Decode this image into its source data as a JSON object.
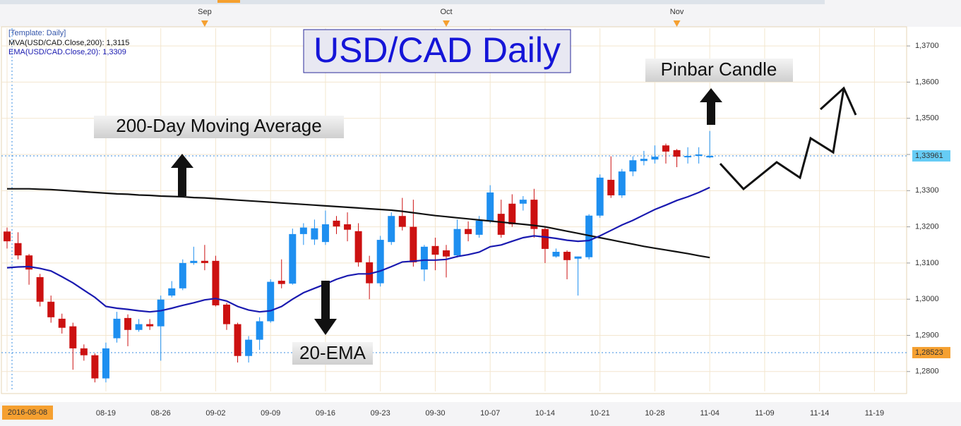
{
  "chart_data": {
    "type": "candlestick",
    "title": "USD/CAD Daily",
    "legend_header": "[Template: Daily]",
    "annotations": [
      "Pinbar Candle",
      "200-Day Moving Average",
      "20-EMA"
    ],
    "categories": [
      "2016-08-08",
      null,
      null,
      null,
      null,
      null,
      null,
      null,
      null,
      "08-19",
      null,
      null,
      null,
      null,
      "08-26",
      null,
      null,
      null,
      null,
      "09-02",
      null,
      null,
      null,
      null,
      "09-09",
      null,
      null,
      null,
      null,
      "09-16",
      null,
      null,
      null,
      null,
      "09-23",
      null,
      null,
      null,
      null,
      "09-30",
      null,
      null,
      null,
      null,
      "10-07",
      null,
      null,
      null,
      null,
      "10-14",
      null,
      null,
      null,
      null,
      "10-21",
      null,
      null,
      null,
      null,
      "10-28",
      null,
      null,
      null,
      null,
      "11-04",
      null,
      null,
      null,
      null,
      "11-09",
      null,
      null,
      null,
      null,
      "11-14",
      null,
      null,
      null,
      null,
      "11-19",
      null,
      null,
      null
    ],
    "top_labels": [
      {
        "label": "Sep",
        "at": 18
      },
      {
        "label": "Oct",
        "at": 40
      },
      {
        "label": "Nov",
        "at": 61
      }
    ],
    "open": [
      1.3187,
      1.3155,
      1.3121,
      1.3061,
      1.2993,
      1.2946,
      1.2925,
      1.2864,
      1.2845,
      1.2781,
      1.2892,
      1.2948,
      1.2915,
      1.2931,
      1.2925,
      1.301,
      1.303,
      1.31,
      1.3106,
      1.3106,
      1.2985,
      1.2931,
      1.2843,
      1.2888,
      1.2939,
      1.3051,
      1.3043,
      1.318,
      1.3165,
      1.3158,
      1.3217,
      1.3207,
      1.3188,
      1.3102,
      1.3044,
      1.3158,
      1.323,
      1.32,
      1.3082,
      1.3147,
      1.3135,
      1.3121,
      1.3194,
      1.3178,
      1.3217,
      1.3236,
      1.3264,
      1.3264,
      1.3275,
      1.3194,
      1.3118,
      1.3131,
      1.3112,
      1.3116,
      1.3231,
      1.333,
      1.3287,
      1.3353,
      1.3382,
      1.3386,
      1.3425,
      1.3412,
      1.3394,
      1.3398,
      1.3392,
      null,
      null,
      null,
      null,
      null,
      null,
      null,
      null,
      null,
      null,
      null,
      null,
      null,
      null,
      null,
      null,
      null,
      null
    ],
    "high": [
      1.3198,
      1.3185,
      1.3125,
      1.307,
      1.301,
      1.296,
      1.2935,
      1.2875,
      1.285,
      1.288,
      1.2965,
      1.2958,
      1.2945,
      1.2945,
      1.301,
      1.305,
      1.311,
      1.3145,
      1.315,
      1.312,
      1.299,
      1.2935,
      1.2898,
      1.295,
      1.3055,
      1.311,
      1.3195,
      1.321,
      1.322,
      1.3245,
      1.323,
      1.324,
      1.321,
      1.312,
      1.3175,
      1.324,
      1.328,
      1.3275,
      1.315,
      1.317,
      1.315,
      1.322,
      1.3215,
      1.323,
      1.3315,
      1.3275,
      1.329,
      1.3285,
      1.3305,
      1.32,
      1.314,
      1.3135,
      1.3118,
      1.3235,
      1.3345,
      1.3395,
      1.336,
      1.3395,
      1.341,
      1.3425,
      1.343,
      1.3415,
      1.342,
      1.342,
      1.3465,
      null,
      null,
      null,
      null,
      null,
      null,
      null,
      null,
      null,
      null,
      null,
      null,
      null,
      null,
      null,
      null,
      null,
      null
    ],
    "low": [
      1.314,
      1.311,
      1.304,
      1.298,
      1.2935,
      1.2905,
      1.2805,
      1.283,
      1.277,
      1.277,
      1.288,
      1.287,
      1.291,
      1.2915,
      1.283,
      1.3005,
      1.3025,
      1.3095,
      1.308,
      1.298,
      1.2915,
      1.2825,
      1.2825,
      1.286,
      1.2935,
      1.303,
      1.304,
      1.315,
      1.315,
      1.315,
      1.318,
      1.316,
      1.309,
      1.3,
      1.3035,
      1.315,
      1.319,
      1.309,
      1.305,
      1.308,
      1.306,
      1.3115,
      1.316,
      1.317,
      1.321,
      1.317,
      1.32,
      1.3245,
      1.317,
      1.31,
      1.3115,
      1.3055,
      1.301,
      1.311,
      1.3225,
      1.328,
      1.328,
      1.334,
      1.337,
      1.3375,
      1.3375,
      1.3365,
      1.3375,
      1.3375,
      1.339,
      null,
      null,
      null,
      null,
      null,
      null,
      null,
      null,
      null,
      null,
      null,
      null,
      null,
      null,
      null,
      null,
      null,
      null
    ],
    "close": [
      1.316,
      1.3121,
      1.3082,
      1.2993,
      1.295,
      1.2921,
      1.2864,
      1.2845,
      1.2781,
      1.2864,
      1.2946,
      1.2915,
      1.2931,
      1.2925,
      1.2999,
      1.303,
      1.31,
      1.3106,
      1.31,
      1.2983,
      1.2931,
      1.2843,
      1.2888,
      1.2939,
      1.3048,
      1.3042,
      1.318,
      1.3198,
      1.3196,
      1.3207,
      1.3201,
      1.3192,
      1.3102,
      1.3044,
      1.3164,
      1.323,
      1.32,
      1.3102,
      1.3145,
      1.3123,
      1.3118,
      1.3194,
      1.318,
      1.3217,
      1.3295,
      1.3178,
      1.3207,
      1.3275,
      1.3194,
      1.3139,
      1.3131,
      1.3108,
      1.3118,
      1.3231,
      1.3336,
      1.3287,
      1.3353,
      1.3384,
      1.3388,
      1.3394,
      1.3408,
      1.3394,
      1.3396,
      1.34,
      1.3396,
      null,
      null,
      null,
      null,
      null,
      null,
      null,
      null,
      null,
      null,
      null,
      null,
      null,
      null,
      null,
      null,
      null,
      null
    ],
    "up_color": "#1e8ff0",
    "down_color": "#cc1111",
    "series": [
      {
        "name": "MVA(USD/CAD.Close,200): 1,3115",
        "color": "#111111",
        "values": [
          1.3305,
          1.3305,
          1.3305,
          1.3304,
          1.3303,
          1.3301,
          1.3299,
          1.3297,
          1.3295,
          1.3293,
          1.3291,
          1.329,
          1.3288,
          1.3287,
          1.3285,
          1.3284,
          1.3283,
          1.3281,
          1.328,
          1.3278,
          1.3276,
          1.3274,
          1.3272,
          1.327,
          1.3268,
          1.3266,
          1.3264,
          1.3262,
          1.326,
          1.3258,
          1.3256,
          1.3254,
          1.3252,
          1.325,
          1.3248,
          1.3246,
          1.3243,
          1.3239,
          1.3235,
          1.3231,
          1.3228,
          1.3225,
          1.3222,
          1.3219,
          1.3216,
          1.3213,
          1.321,
          1.3207,
          1.3204,
          1.32,
          1.3194,
          1.3188,
          1.3182,
          1.3176,
          1.317,
          1.3164,
          1.3158,
          1.3152,
          1.3146,
          1.3141,
          1.3136,
          1.3131,
          1.3126,
          1.312,
          1.3115,
          null,
          null,
          null,
          null,
          null,
          null,
          null,
          null,
          null,
          null,
          null,
          null,
          null,
          null,
          null,
          null,
          null,
          null
        ]
      },
      {
        "name": "EMA(USD/CAD.Close,20): 1,3309",
        "color": "#1a1ab0",
        "values": [
          1.3087,
          1.3089,
          1.309,
          1.3085,
          1.3078,
          1.3062,
          1.3045,
          1.3025,
          1.3005,
          1.298,
          1.2975,
          1.2972,
          1.2968,
          1.2965,
          1.2968,
          1.2975,
          1.2983,
          1.299,
          1.2998,
          1.3002,
          1.2995,
          1.298,
          1.297,
          1.2965,
          1.2968,
          1.298,
          1.3,
          1.3018,
          1.303,
          1.3042,
          1.3055,
          1.3065,
          1.307,
          1.307,
          1.3078,
          1.309,
          1.3103,
          1.3105,
          1.3108,
          1.3108,
          1.311,
          1.3118,
          1.3123,
          1.313,
          1.3145,
          1.315,
          1.316,
          1.317,
          1.3175,
          1.3172,
          1.3168,
          1.3163,
          1.316,
          1.3162,
          1.3175,
          1.319,
          1.3205,
          1.3218,
          1.3233,
          1.3248,
          1.326,
          1.3273,
          1.3283,
          1.3295,
          1.3309,
          null,
          null,
          null,
          null,
          null,
          null,
          null,
          null,
          null,
          null,
          null,
          null,
          null,
          null,
          null,
          null,
          null,
          null
        ]
      }
    ],
    "ylim": [
      1.2745,
      1.3749
    ],
    "yticks": [
      {
        "value": 1.28,
        "label": "1,2800"
      },
      {
        "value": 1.29,
        "label": "1,2900"
      },
      {
        "value": 1.3,
        "label": "1,3000"
      },
      {
        "value": 1.31,
        "label": "1,3100"
      },
      {
        "value": 1.32,
        "label": "1,3200"
      },
      {
        "value": 1.33,
        "label": "1,3300"
      },
      {
        "value": 1.34,
        "label": "1,3400"
      },
      {
        "value": 1.35,
        "label": "1,3500"
      },
      {
        "value": 1.36,
        "label": "1,3600"
      },
      {
        "value": 1.37,
        "label": "1,3700"
      }
    ],
    "price_markers": [
      {
        "value": 1.33961,
        "label": "1,33961",
        "color": "#66ccf5"
      },
      {
        "value": 1.28523,
        "label": "1,28523",
        "color": "#f5a030"
      }
    ],
    "grid": true
  }
}
